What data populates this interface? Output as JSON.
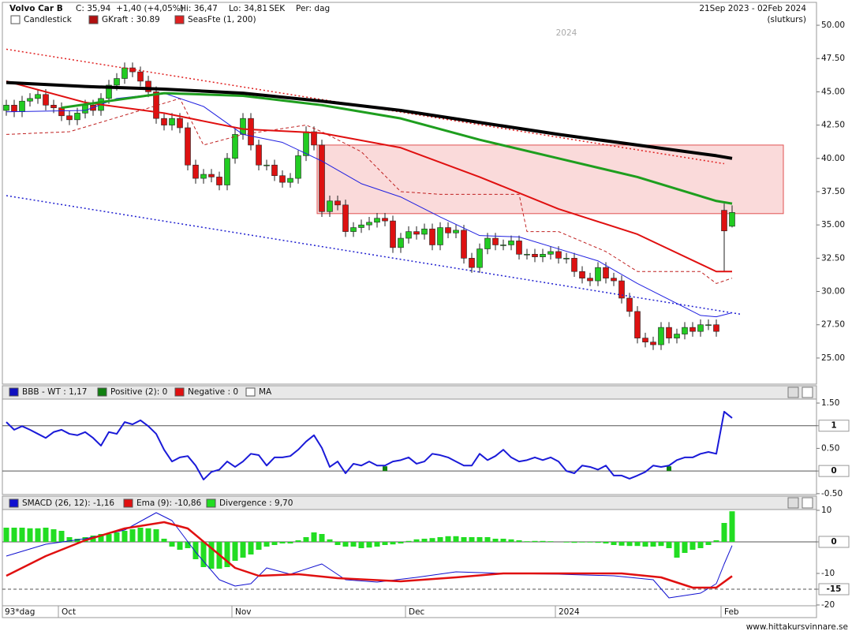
{
  "header": {
    "title": "Volvo Car B",
    "close": "C: 35,94",
    "change": "+1,40 (+4,05%)",
    "high": "Hi: 36,47",
    "low": "Lo: 34,81",
    "currency": "SEK",
    "period": "Per: dag",
    "range": "21Sep 2023 - 02Feb 2024",
    "price_type": "(slutkurs)"
  },
  "footer": "www.hittakursvinnare.se",
  "xaxis": {
    "first_label": "93*dag",
    "ticks": [
      {
        "index": 7,
        "label": "Oct"
      },
      {
        "index": 29,
        "label": "Nov"
      },
      {
        "index": 51,
        "label": "Dec"
      },
      {
        "index": 70,
        "label": "2024"
      },
      {
        "index": 91,
        "label": "Feb"
      }
    ]
  },
  "chart_data": [
    {
      "type": "candlestick",
      "year_label": "2024",
      "legend": [
        {
          "label": "Candlestick",
          "color": "#ffffff"
        },
        {
          "label": "GKraft : 30.89",
          "color": "#b01010"
        },
        {
          "label": "SeasFte (1, 200)",
          "color": "#e02020"
        }
      ],
      "up_color": "#22cc22",
      "down_color": "#dd1111",
      "open": [
        43.6,
        44.0,
        43.5,
        44.3,
        44.5,
        44.8,
        44.0,
        43.8,
        43.2,
        42.9,
        43.4,
        44.0,
        43.6,
        44.5,
        45.5,
        46.0,
        46.8,
        46.5,
        45.8,
        45.0,
        43.0,
        42.5,
        43.0,
        42.3,
        39.5,
        38.5,
        38.8,
        38.6,
        38.0,
        40.0,
        41.8,
        43.0,
        41.0,
        39.5,
        39.5,
        38.7,
        38.2,
        38.5,
        40.2,
        42.0,
        41.0,
        36.0,
        36.8,
        36.5,
        34.5,
        34.8,
        35.0,
        35.2,
        35.5,
        35.3,
        33.3,
        34.0,
        34.5,
        34.3,
        34.7,
        33.5,
        34.8,
        34.4,
        34.6,
        32.5,
        31.8,
        33.2,
        34.0,
        33.5,
        33.5,
        33.8,
        32.8,
        32.8,
        32.6,
        32.8,
        33.0,
        32.5,
        32.5,
        31.5,
        31.0,
        30.8,
        31.8,
        31.0,
        30.8,
        29.5,
        28.5,
        26.5,
        26.2,
        26.0,
        27.3,
        26.5,
        26.8,
        27.3,
        27.0,
        27.5,
        27.5,
        36.1,
        34.9
      ],
      "high": [
        44.4,
        44.4,
        44.7,
        44.9,
        45.2,
        45.2,
        44.4,
        44.2,
        43.6,
        43.8,
        44.4,
        44.4,
        44.9,
        45.9,
        46.4,
        47.2,
        47.2,
        46.9,
        46.2,
        45.4,
        43.4,
        43.4,
        43.4,
        42.7,
        39.9,
        39.2,
        39.2,
        39.0,
        40.4,
        42.2,
        43.4,
        43.4,
        41.4,
        39.9,
        39.9,
        39.1,
        38.9,
        40.6,
        42.4,
        42.4,
        41.4,
        37.2,
        37.2,
        36.9,
        35.2,
        35.4,
        35.6,
        35.9,
        35.9,
        35.7,
        34.4,
        34.9,
        34.9,
        35.1,
        35.1,
        35.2,
        35.2,
        35.0,
        35.0,
        32.9,
        33.6,
        34.4,
        34.4,
        33.9,
        34.2,
        34.2,
        33.2,
        33.2,
        33.2,
        33.4,
        33.4,
        32.9,
        32.9,
        31.9,
        31.4,
        32.2,
        32.2,
        31.4,
        31.2,
        29.9,
        28.9,
        26.9,
        26.6,
        27.7,
        27.7,
        27.2,
        27.7,
        27.7,
        27.9,
        27.9,
        27.9,
        36.6,
        36.47
      ],
      "low": [
        43.2,
        43.1,
        43.1,
        43.9,
        44.1,
        43.6,
        43.4,
        42.8,
        42.5,
        42.5,
        43.0,
        43.2,
        43.2,
        44.1,
        45.1,
        45.6,
        46.1,
        45.4,
        44.6,
        42.6,
        42.1,
        42.1,
        41.9,
        39.1,
        38.1,
        38.1,
        38.2,
        37.6,
        37.6,
        39.6,
        41.4,
        40.6,
        39.1,
        39.1,
        38.3,
        37.8,
        37.8,
        38.1,
        39.8,
        40.6,
        35.6,
        35.6,
        36.1,
        34.1,
        34.1,
        34.4,
        34.6,
        34.8,
        34.9,
        32.9,
        32.9,
        33.6,
        33.9,
        33.9,
        33.1,
        33.1,
        34.0,
        34.0,
        32.1,
        31.4,
        31.4,
        32.8,
        33.1,
        33.1,
        33.1,
        32.4,
        32.4,
        32.2,
        32.2,
        32.4,
        32.1,
        32.1,
        31.1,
        30.6,
        30.4,
        30.4,
        30.6,
        30.4,
        29.1,
        28.1,
        26.1,
        25.8,
        25.6,
        25.6,
        26.1,
        26.1,
        26.4,
        26.6,
        26.6,
        27.1,
        26.6,
        31.5,
        34.81
      ],
      "close": [
        44.0,
        43.5,
        44.3,
        44.5,
        44.8,
        44.0,
        43.8,
        43.2,
        42.9,
        43.4,
        44.0,
        43.6,
        44.5,
        45.5,
        46.0,
        46.8,
        46.5,
        45.8,
        45.0,
        43.0,
        42.5,
        43.0,
        42.3,
        39.5,
        38.5,
        38.8,
        38.6,
        38.0,
        40.0,
        41.8,
        43.0,
        41.0,
        39.5,
        39.5,
        38.7,
        38.2,
        38.5,
        40.2,
        42.0,
        41.0,
        36.0,
        36.8,
        36.5,
        34.5,
        34.8,
        35.0,
        35.2,
        35.5,
        35.3,
        33.3,
        34.0,
        34.5,
        34.3,
        34.7,
        33.5,
        34.8,
        34.4,
        34.6,
        32.5,
        31.8,
        33.2,
        34.0,
        33.5,
        33.5,
        33.8,
        32.8,
        32.8,
        32.6,
        32.8,
        33.0,
        32.5,
        32.5,
        31.5,
        31.0,
        30.8,
        31.8,
        31.0,
        30.8,
        29.5,
        28.5,
        26.5,
        26.2,
        26.0,
        27.3,
        26.5,
        26.8,
        27.3,
        27.0,
        27.5,
        27.5,
        27.0,
        34.55,
        35.94
      ],
      "zone": {
        "x": [
          39.4,
          98.5
        ],
        "values": [
          41.0,
          35.85
        ],
        "color": "#fadada",
        "border": "#e05050"
      },
      "overlays": [
        {
          "color": "#e02020",
          "width": 1.5,
          "dash": "dotted",
          "x": [
            0,
            91
          ],
          "values": [
            48.2,
            39.6
          ]
        },
        {
          "color": "#2020d0",
          "width": 1.5,
          "dash": "dotted",
          "x": [
            0,
            93
          ],
          "values": [
            37.2,
            28.3
          ]
        },
        {
          "color": "#c02020",
          "width": 1,
          "dash": "dashed",
          "x": [
            0,
            8,
            17,
            22,
            25,
            30,
            38,
            40,
            45,
            50,
            55,
            65,
            66,
            70,
            76,
            80,
            88,
            90,
            92
          ],
          "values": [
            41.8,
            42.0,
            43.6,
            44.5,
            41.0,
            41.8,
            42.5,
            42.0,
            40.5,
            37.5,
            37.3,
            37.3,
            34.5,
            34.5,
            33.0,
            31.5,
            31.5,
            30.6,
            31.0
          ]
        },
        {
          "color": "#2020e0",
          "width": 1,
          "x": [
            0,
            10,
            14,
            20,
            25,
            30,
            35,
            40,
            45,
            50,
            55,
            60,
            65,
            70,
            75,
            80,
            85,
            88,
            90,
            92
          ],
          "values": [
            43.5,
            43.6,
            44.5,
            44.9,
            43.9,
            41.8,
            41.2,
            39.8,
            38.1,
            37.1,
            35.6,
            34.2,
            34.1,
            33.2,
            32.3,
            30.6,
            29.1,
            28.2,
            28.1,
            28.4
          ]
        },
        {
          "color": "#e01010",
          "width": 2,
          "x": [
            0,
            10,
            20,
            30,
            40,
            50,
            60,
            70,
            80,
            90,
            92
          ],
          "values": [
            45.8,
            44.2,
            43.4,
            42.2,
            41.9,
            40.8,
            38.6,
            36.2,
            34.3,
            31.5,
            31.5
          ]
        },
        {
          "color": "#1e9e1e",
          "width": 3,
          "x": [
            7,
            20,
            30,
            40,
            50,
            60,
            70,
            80,
            90,
            92
          ],
          "values": [
            43.8,
            44.9,
            44.7,
            44.0,
            43.0,
            41.4,
            40.0,
            38.6,
            36.8,
            36.6
          ]
        },
        {
          "color": "#000000",
          "width": 4,
          "x": [
            0,
            10,
            20,
            30,
            40,
            50,
            60,
            70,
            80,
            90,
            92
          ],
          "values": [
            45.7,
            45.4,
            45.2,
            44.9,
            44.3,
            43.6,
            42.7,
            41.8,
            41.0,
            40.2,
            40.0
          ]
        }
      ],
      "ylim": [
        23.04,
        51.72
      ],
      "yticks": [
        {
          "value": 25,
          "label": "25.00"
        },
        {
          "value": 27.5,
          "label": "27.50"
        },
        {
          "value": 30,
          "label": "30.00"
        },
        {
          "value": 32.5,
          "label": "32.50"
        },
        {
          "value": 35,
          "label": "35.00"
        },
        {
          "value": 37.5,
          "label": "37.50"
        },
        {
          "value": 40,
          "label": "40.00"
        },
        {
          "value": 42.5,
          "label": "42.50"
        },
        {
          "value": 45,
          "label": "45.00"
        },
        {
          "value": 47.5,
          "label": "47.50"
        },
        {
          "value": 50,
          "label": "50.00"
        }
      ]
    },
    {
      "type": "line",
      "legend": [
        {
          "label": "BBB - WT : 1,17",
          "color": "#1010c0"
        },
        {
          "label": "Positive (2): 0",
          "color": "#108010"
        },
        {
          "label": "Negative : 0",
          "color": "#e01010"
        },
        {
          "label": "MA",
          "color": "#ffffff"
        }
      ],
      "series": [
        {
          "color": "#1a1ad8",
          "values": [
            1.08,
            0.91,
            0.99,
            0.91,
            0.82,
            0.73,
            0.86,
            0.91,
            0.82,
            0.79,
            0.86,
            0.73,
            0.56,
            0.86,
            0.82,
            1.08,
            1.03,
            1.12,
            0.99,
            0.82,
            0.47,
            0.21,
            0.3,
            0.33,
            0.12,
            -0.19,
            -0.02,
            0.03,
            0.21,
            0.09,
            0.21,
            0.38,
            0.35,
            0.12,
            0.3,
            0.3,
            0.33,
            0.47,
            0.65,
            0.79,
            0.51,
            0.09,
            0.21,
            -0.05,
            0.16,
            0.12,
            0.21,
            0.12,
            0.12,
            0.21,
            0.24,
            0.3,
            0.16,
            0.21,
            0.38,
            0.35,
            0.3,
            0.21,
            0.12,
            0.12,
            0.38,
            0.24,
            0.33,
            0.47,
            0.3,
            0.21,
            0.24,
            0.3,
            0.24,
            0.3,
            0.21,
            0.0,
            -0.05,
            0.12,
            0.09,
            0.03,
            0.12,
            -0.1,
            -0.1,
            -0.17,
            -0.1,
            -0.02,
            0.12,
            0.09,
            0.12,
            0.24,
            0.3,
            0.3,
            0.38,
            0.42,
            0.38,
            1.31,
            1.17
          ]
        }
      ],
      "markers": {
        "color": "#108010",
        "x": [
          48,
          84
        ]
      },
      "reference_lines": [
        {
          "value": 1
        },
        {
          "value": 0
        }
      ],
      "ylim": [
        -0.52,
        1.57
      ],
      "yticks": [
        {
          "value": 1.5,
          "label": "1.50"
        },
        1,
        {
          "value": 0.5,
          "label": "0.50"
        },
        0,
        {
          "value": -0.5,
          "label": "-0.50"
        }
      ]
    },
    {
      "type": "macd",
      "legend": [
        {
          "label": "SMACD (26, 12): -1,16",
          "color": "#1010d0"
        },
        {
          "label": "Ema (9): -10,86",
          "color": "#e01010"
        },
        {
          "label": "Divergence : 9,70",
          "color": "#22dd22"
        }
      ],
      "histogram": {
        "color": "#22dd22",
        "values": [
          4.5,
          4.5,
          4.5,
          4.3,
          4.3,
          4.5,
          4.0,
          3.5,
          1.5,
          1.0,
          1.5,
          2.0,
          2.5,
          2.5,
          3.0,
          3.5,
          4.0,
          4.5,
          4.3,
          4.0,
          1.0,
          -1.5,
          -2.5,
          -2.0,
          -5.5,
          -8.0,
          -8.5,
          -8.5,
          -8.0,
          -6.0,
          -5.0,
          -4.0,
          -2.5,
          -1.5,
          -1.0,
          -0.5,
          -0.5,
          0.5,
          1.5,
          3.0,
          2.5,
          0.8,
          -1.0,
          -1.5,
          -1.5,
          -2.0,
          -1.8,
          -1.5,
          -1.0,
          -0.8,
          -0.5,
          0.3,
          0.8,
          1.0,
          1.2,
          1.5,
          1.8,
          1.8,
          1.5,
          1.5,
          1.5,
          1.5,
          1.0,
          1.0,
          0.8,
          0.5,
          0.2,
          0.3,
          0.3,
          0.2,
          0,
          -0.2,
          -0.3,
          -0.2,
          -0.2,
          -0.3,
          -0.5,
          -1.0,
          -1.2,
          -1.3,
          -1.3,
          -1.5,
          -1.5,
          -1.3,
          -2.0,
          -5.0,
          -3.5,
          -2.5,
          -2.0,
          -1.0,
          0.5,
          6.0,
          9.7
        ]
      },
      "series": [
        {
          "color": "#1010d0",
          "width": 1,
          "x": [
            0,
            5,
            10,
            15,
            19,
            21,
            24,
            27,
            29,
            31,
            33,
            36,
            40,
            43,
            47,
            52,
            57,
            63,
            70,
            77,
            82,
            84,
            88,
            90,
            91,
            92
          ],
          "values": [
            -4.5,
            -0.75,
            1,
            3.75,
            9.25,
            6.75,
            -3.25,
            -12,
            -14,
            -13.25,
            -8.25,
            -10.25,
            -7,
            -12,
            -12.75,
            -11.25,
            -9.5,
            -10,
            -10.25,
            -10.75,
            -12,
            -17.75,
            -16.25,
            -13.25,
            -7,
            -1.16
          ]
        },
        {
          "color": "#e01010",
          "width": 2.5,
          "x": [
            0,
            5,
            10,
            15,
            20,
            23,
            26,
            29,
            32,
            37,
            42,
            50,
            57,
            63,
            70,
            78,
            83,
            87,
            90,
            92
          ],
          "values": [
            -10.75,
            -4.5,
            0.5,
            4.25,
            6.25,
            4.25,
            -2,
            -8.25,
            -10.75,
            -10.25,
            -11.5,
            -12.5,
            -11.25,
            -10,
            -10,
            -10,
            -11.25,
            -14.5,
            -14.5,
            -10.86
          ]
        }
      ],
      "reference_lines": [
        {
          "value": 0
        },
        {
          "value": -15,
          "dash": "dashed"
        }
      ],
      "ylim": [
        -20.25,
        10.5
      ],
      "yticks": [
        10,
        0,
        -10,
        -15,
        -20
      ]
    }
  ]
}
